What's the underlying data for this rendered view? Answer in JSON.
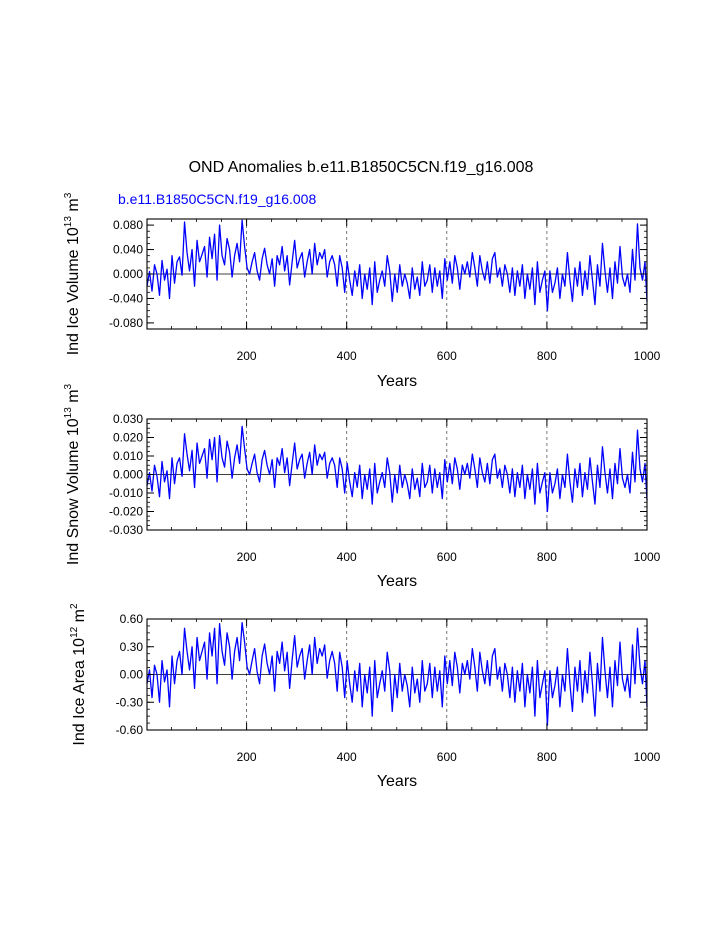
{
  "title": "OND Anomalies b.e11.B1850C5CN.f19_g16.008",
  "case_label": "b.e11.B1850C5CN.f19_g16.008",
  "colors": {
    "line": "#0000ff",
    "label": "#0000ff",
    "axis": "#000000"
  },
  "chart_data": [
    {
      "type": "line",
      "ylabel": "Ind Ice Volume 10",
      "ylabel_exp": "13",
      "ylabel_unit": "m",
      "ylabel_unit_exp": "3",
      "xlabel": "Years",
      "xlim": [
        1,
        1000
      ],
      "ylim": [
        -0.09,
        0.09
      ],
      "xticks": [
        200,
        400,
        600,
        800,
        1000
      ],
      "xtick_labels": [
        "200",
        "400",
        "600",
        "800",
        "1000"
      ],
      "yticks": [
        -0.08,
        -0.04,
        0.0,
        0.04,
        0.08
      ],
      "ytick_labels": [
        "-0.080",
        "-0.040",
        "0.000",
        "0.040",
        "0.080"
      ],
      "ref_lines_x": [
        200,
        400,
        600,
        800
      ],
      "series": [
        {
          "name": "b.e11.B1850C5CN.f19_g16.008",
          "x_start": 1,
          "x_step": 5,
          "values": [
            -0.02,
            0.004,
            -0.028,
            0.015,
            0.0,
            -0.035,
            0.022,
            -0.01,
            0.008,
            -0.04,
            0.03,
            -0.015,
            0.02,
            0.028,
            -0.002,
            0.085,
            0.035,
            0.005,
            0.04,
            -0.02,
            0.055,
            0.02,
            0.032,
            0.045,
            -0.005,
            0.06,
            0.025,
            0.065,
            -0.01,
            0.08,
            0.03,
            0.015,
            0.058,
            0.04,
            -0.005,
            0.03,
            0.05,
            0.02,
            0.088,
            0.045,
            0.01,
            0.0,
            0.02,
            0.035,
            0.005,
            -0.01,
            0.025,
            0.042,
            0.015,
            0.0,
            0.025,
            -0.02,
            0.03,
            0.015,
            0.045,
            0.005,
            0.03,
            -0.018,
            0.02,
            0.055,
            0.01,
            0.025,
            0.035,
            -0.005,
            0.02,
            0.04,
            0.0,
            0.05,
            0.015,
            0.035,
            0.025,
            0.04,
            -0.005,
            0.02,
            0.03,
            0.015,
            -0.02,
            0.03,
            0.01,
            -0.03,
            0.02,
            -0.01,
            -0.035,
            0.005,
            -0.02,
            0.015,
            -0.04,
            0.0,
            -0.025,
            0.01,
            -0.05,
            0.02,
            -0.03,
            -0.01,
            0.005,
            -0.02,
            0.03,
            0.005,
            -0.045,
            0.0,
            -0.03,
            0.015,
            -0.02,
            0.0,
            -0.015,
            -0.04,
            0.01,
            -0.025,
            -0.005,
            -0.035,
            0.02,
            -0.02,
            -0.01,
            0.015,
            -0.03,
            0.01,
            -0.02,
            0.005,
            -0.04,
            0.025,
            -0.01,
            0.02,
            -0.015,
            0.03,
            0.01,
            -0.025,
            0.015,
            0.0,
            0.02,
            -0.005,
            0.035,
            0.01,
            -0.02,
            0.03,
            0.005,
            -0.01,
            0.02,
            -0.015,
            0.025,
            0.035,
            -0.005,
            0.01,
            -0.02,
            0.015,
            0.0,
            -0.03,
            0.01,
            -0.035,
            0.005,
            -0.02,
            0.015,
            -0.04,
            0.0,
            -0.025,
            0.01,
            -0.05,
            0.02,
            -0.03,
            -0.01,
            0.005,
            -0.06,
            0.005,
            -0.03,
            -0.015,
            0.01,
            -0.04,
            0.0,
            -0.02,
            0.035,
            -0.01,
            -0.045,
            0.01,
            -0.02,
            0.02,
            -0.035,
            0.005,
            -0.025,
            0.03,
            -0.01,
            -0.05,
            0.015,
            -0.02,
            0.05,
            0.005,
            -0.03,
            0.01,
            -0.04,
            0.02,
            -0.015,
            0.045,
            -0.005,
            -0.02,
            0.0,
            -0.03,
            0.04,
            -0.01,
            0.082,
            0.01,
            -0.01,
            0.02,
            -0.045
          ]
        }
      ]
    },
    {
      "type": "line",
      "ylabel": "Ind Snow Volume 10",
      "ylabel_exp": "13",
      "ylabel_unit": "m",
      "ylabel_unit_exp": "3",
      "xlabel": "Years",
      "xlim": [
        1,
        1000
      ],
      "ylim": [
        -0.03,
        0.03
      ],
      "xticks": [
        200,
        400,
        600,
        800,
        1000
      ],
      "xtick_labels": [
        "200",
        "400",
        "600",
        "800",
        "1000"
      ],
      "yticks": [
        -0.03,
        -0.02,
        -0.01,
        0.0,
        0.01,
        0.02,
        0.03
      ],
      "ytick_labels": [
        "-0.030",
        "-0.020",
        "-0.010",
        "0.000",
        "0.010",
        "0.020",
        "0.030"
      ],
      "ref_lines_x": [
        200,
        400,
        600,
        800
      ],
      "series": [
        {
          "name": "b.e11.B1850C5CN.f19_g16.008",
          "x_start": 1,
          "x_step": 5,
          "values": [
            -0.006,
            0.001,
            -0.009,
            0.005,
            -0.001,
            -0.012,
            0.007,
            -0.004,
            0.002,
            -0.013,
            0.009,
            -0.005,
            0.006,
            0.009,
            -0.001,
            0.022,
            0.011,
            0.002,
            0.013,
            -0.007,
            0.017,
            0.006,
            0.01,
            0.014,
            -0.002,
            0.019,
            0.008,
            0.02,
            -0.004,
            0.021,
            0.009,
            0.004,
            0.018,
            0.012,
            -0.002,
            0.009,
            0.016,
            0.006,
            0.026,
            0.014,
            0.003,
            0.0,
            0.006,
            0.011,
            0.001,
            -0.004,
            0.008,
            0.013,
            0.005,
            0.0,
            0.008,
            -0.007,
            0.009,
            0.005,
            0.014,
            0.001,
            0.009,
            -0.006,
            0.006,
            0.017,
            0.003,
            0.008,
            0.011,
            -0.002,
            0.006,
            0.012,
            0.0,
            0.016,
            0.005,
            0.011,
            0.008,
            0.012,
            -0.002,
            0.006,
            0.009,
            0.005,
            -0.007,
            0.009,
            0.003,
            -0.01,
            0.006,
            -0.004,
            -0.012,
            0.001,
            -0.007,
            0.005,
            -0.013,
            0.0,
            -0.008,
            0.003,
            -0.016,
            0.006,
            -0.01,
            -0.004,
            0.001,
            -0.007,
            0.009,
            0.001,
            -0.015,
            0.0,
            -0.01,
            0.005,
            -0.007,
            0.0,
            -0.005,
            -0.013,
            0.003,
            -0.008,
            -0.002,
            -0.012,
            0.006,
            -0.007,
            -0.004,
            0.005,
            -0.01,
            0.003,
            -0.007,
            0.001,
            -0.013,
            0.008,
            -0.004,
            0.006,
            -0.005,
            0.009,
            0.003,
            -0.008,
            0.005,
            0.0,
            0.006,
            -0.002,
            0.011,
            0.003,
            -0.007,
            0.009,
            0.001,
            -0.004,
            0.006,
            -0.005,
            0.008,
            0.011,
            -0.002,
            0.003,
            -0.007,
            0.005,
            0.0,
            -0.01,
            0.003,
            -0.012,
            0.001,
            -0.007,
            0.005,
            -0.013,
            0.0,
            -0.008,
            0.003,
            -0.016,
            0.006,
            -0.01,
            -0.004,
            0.001,
            -0.02,
            0.001,
            -0.01,
            -0.005,
            0.003,
            -0.013,
            0.0,
            -0.007,
            0.011,
            -0.004,
            -0.015,
            0.003,
            -0.007,
            0.006,
            -0.012,
            0.001,
            -0.008,
            0.009,
            -0.004,
            -0.016,
            0.005,
            -0.007,
            0.015,
            0.001,
            -0.01,
            0.003,
            -0.013,
            0.006,
            -0.005,
            0.014,
            -0.002,
            -0.007,
            0.0,
            -0.01,
            0.012,
            -0.004,
            0.024,
            0.003,
            -0.004,
            0.006,
            -0.014
          ]
        }
      ]
    },
    {
      "type": "line",
      "ylabel": "Ind Ice Area 10",
      "ylabel_exp": "12",
      "ylabel_unit": "m",
      "ylabel_unit_exp": "2",
      "xlabel": "Years",
      "xlim": [
        1,
        1000
      ],
      "ylim": [
        -0.6,
        0.6
      ],
      "xticks": [
        200,
        400,
        600,
        800,
        1000
      ],
      "xtick_labels": [
        "200",
        "400",
        "600",
        "800",
        "1000"
      ],
      "yticks": [
        -0.6,
        -0.3,
        0.0,
        0.3,
        0.6
      ],
      "ytick_labels": [
        "-0.60",
        "-0.30",
        "0.00",
        "0.30",
        "0.60"
      ],
      "ref_lines_x": [
        200,
        400,
        600,
        800
      ],
      "series": [
        {
          "name": "b.e11.B1850C5CN.f19_g16.008",
          "x_start": 1,
          "x_step": 5,
          "values": [
            -0.1,
            0.05,
            -0.25,
            0.1,
            0.0,
            -0.3,
            0.15,
            -0.08,
            0.05,
            -0.35,
            0.2,
            -0.1,
            0.15,
            0.25,
            0.0,
            0.5,
            0.25,
            0.05,
            0.3,
            -0.15,
            0.4,
            0.15,
            0.25,
            0.35,
            -0.05,
            0.45,
            0.2,
            0.5,
            -0.1,
            0.55,
            0.25,
            0.1,
            0.45,
            0.3,
            -0.05,
            0.25,
            0.4,
            0.15,
            0.56,
            0.35,
            0.08,
            0.0,
            0.15,
            0.28,
            0.03,
            -0.1,
            0.2,
            0.33,
            0.12,
            0.0,
            0.2,
            -0.18,
            0.25,
            0.12,
            0.35,
            0.04,
            0.24,
            -0.15,
            0.16,
            0.42,
            0.08,
            0.2,
            0.28,
            -0.05,
            0.15,
            0.32,
            0.0,
            0.4,
            0.12,
            0.28,
            0.2,
            0.32,
            -0.04,
            0.15,
            0.25,
            0.12,
            -0.18,
            0.24,
            0.08,
            -0.25,
            0.15,
            -0.1,
            -0.3,
            0.04,
            -0.18,
            0.12,
            -0.35,
            0.0,
            -0.2,
            0.08,
            -0.45,
            0.15,
            -0.25,
            -0.1,
            0.04,
            -0.18,
            0.24,
            0.04,
            -0.4,
            0.0,
            -0.25,
            0.12,
            -0.18,
            0.0,
            -0.12,
            -0.35,
            0.08,
            -0.2,
            -0.05,
            -0.3,
            0.15,
            -0.18,
            -0.1,
            0.12,
            -0.25,
            0.08,
            -0.18,
            0.04,
            -0.35,
            0.2,
            -0.1,
            0.15,
            -0.12,
            0.24,
            0.08,
            -0.2,
            0.12,
            0.0,
            0.15,
            -0.05,
            0.28,
            0.08,
            -0.18,
            0.24,
            0.04,
            -0.1,
            0.15,
            -0.12,
            0.2,
            0.28,
            -0.05,
            0.08,
            -0.18,
            0.12,
            0.0,
            -0.25,
            0.08,
            -0.3,
            0.04,
            -0.18,
            0.12,
            -0.35,
            0.0,
            -0.2,
            0.08,
            -0.45,
            0.15,
            -0.25,
            -0.1,
            0.04,
            -0.55,
            0.04,
            -0.25,
            -0.12,
            0.08,
            -0.35,
            0.0,
            -0.18,
            0.28,
            -0.1,
            -0.4,
            0.08,
            -0.18,
            0.15,
            -0.3,
            0.04,
            -0.2,
            0.24,
            -0.1,
            -0.45,
            0.12,
            -0.18,
            0.4,
            0.04,
            -0.25,
            0.08,
            -0.35,
            0.15,
            -0.12,
            0.35,
            -0.05,
            -0.18,
            0.0,
            -0.25,
            0.32,
            -0.1,
            0.5,
            0.08,
            -0.1,
            0.15,
            -0.35
          ]
        }
      ]
    }
  ]
}
